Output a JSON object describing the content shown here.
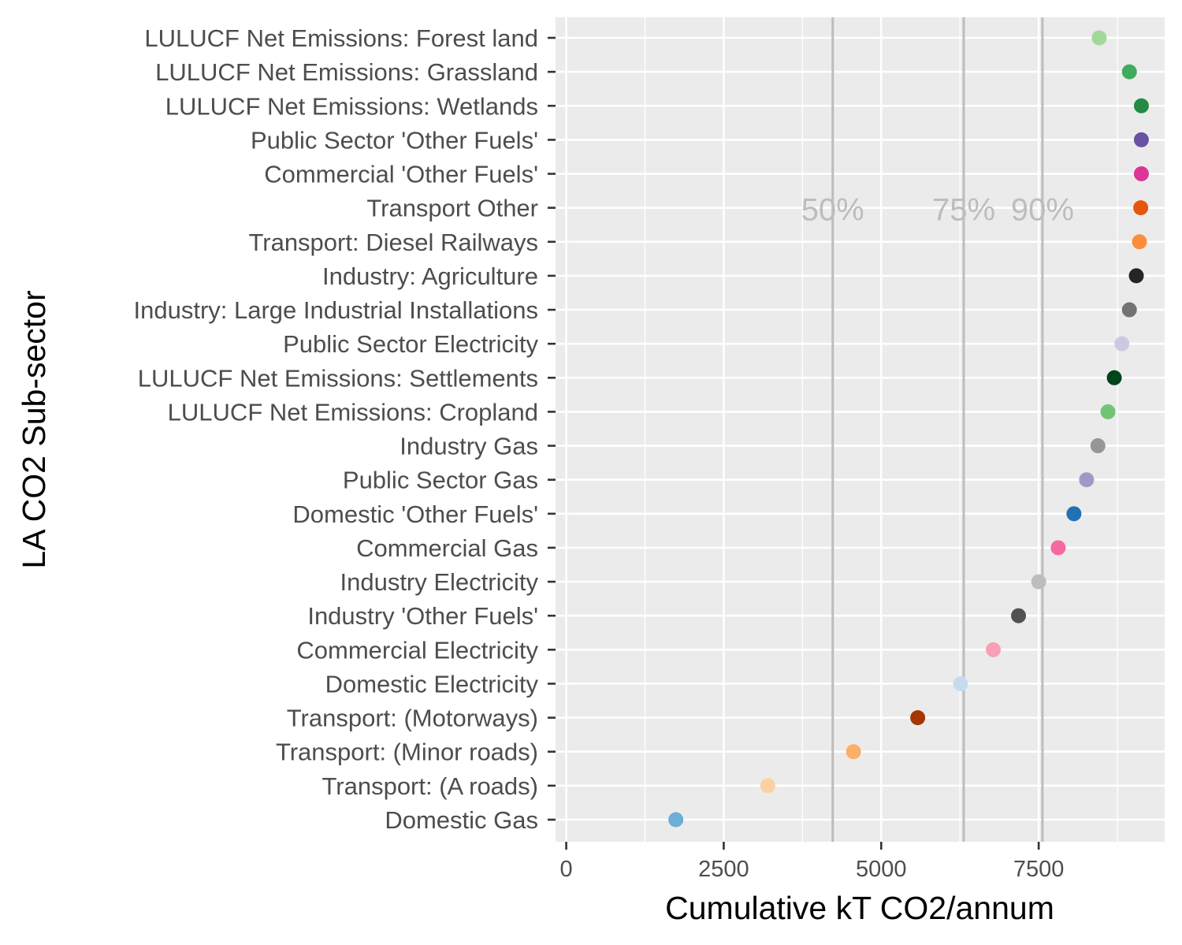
{
  "chart_data": {
    "type": "scatter",
    "xlabel": "Cumulative kT CO2/annum",
    "ylabel": "LA CO2 Sub-sector",
    "xlim": [
      -170,
      9500
    ],
    "x_ticks": [
      0,
      2500,
      5000,
      7500
    ],
    "x_tick_labels": [
      "0",
      "2500",
      "5000",
      "7500"
    ],
    "grid": true,
    "panel_background": "#ebebeb",
    "grid_color": "#ffffff",
    "reference_lines": [
      {
        "label": "50%",
        "x": 4230,
        "color": "#bdbdbd"
      },
      {
        "label": "75%",
        "x": 6310,
        "color": "#bdbdbd"
      },
      {
        "label": "90%",
        "x": 7560,
        "color": "#bdbdbd"
      }
    ],
    "points": [
      {
        "category": "LULUCF Net Emissions: Forest land",
        "x": 8460,
        "color": "#a1d99b"
      },
      {
        "category": "LULUCF Net Emissions: Grassland",
        "x": 8940,
        "color": "#41ab5d"
      },
      {
        "category": "LULUCF Net Emissions: Wetlands",
        "x": 9130,
        "color": "#238b45"
      },
      {
        "category": "Public Sector 'Other Fuels'",
        "x": 9130,
        "color": "#6a51a3"
      },
      {
        "category": "Commercial 'Other Fuels'",
        "x": 9130,
        "color": "#dd3497"
      },
      {
        "category": "Transport Other",
        "x": 9120,
        "color": "#e6550d"
      },
      {
        "category": "Transport: Diesel Railways",
        "x": 9100,
        "color": "#fd8d3c"
      },
      {
        "category": "Industry: Agriculture",
        "x": 9050,
        "color": "#252525"
      },
      {
        "category": "Industry: Large Industrial Installations",
        "x": 8940,
        "color": "#737373"
      },
      {
        "category": "Public Sector Electricity",
        "x": 8820,
        "color": "#cbc9e2"
      },
      {
        "category": "LULUCF Net Emissions: Settlements",
        "x": 8700,
        "color": "#00441b"
      },
      {
        "category": "LULUCF Net Emissions: Cropland",
        "x": 8600,
        "color": "#74c476"
      },
      {
        "category": "Industry Gas",
        "x": 8440,
        "color": "#969696"
      },
      {
        "category": "Public Sector Gas",
        "x": 8260,
        "color": "#9e9ac8"
      },
      {
        "category": "Domestic 'Other Fuels'",
        "x": 8060,
        "color": "#2171b5"
      },
      {
        "category": "Commercial Gas",
        "x": 7810,
        "color": "#f768a1"
      },
      {
        "category": "Industry Electricity",
        "x": 7500,
        "color": "#bdbdbd"
      },
      {
        "category": "Industry 'Other Fuels'",
        "x": 7180,
        "color": "#525252"
      },
      {
        "category": "Commercial Electricity",
        "x": 6780,
        "color": "#fa9fb5"
      },
      {
        "category": "Domestic Electricity",
        "x": 6260,
        "color": "#c6dbef"
      },
      {
        "category": "Transport: (Motorways)",
        "x": 5580,
        "color": "#a63603"
      },
      {
        "category": "Transport: (Minor roads)",
        "x": 4560,
        "color": "#fdae6b"
      },
      {
        "category": "Transport: (A roads)",
        "x": 3200,
        "color": "#fdd0a2"
      },
      {
        "category": "Domestic Gas",
        "x": 1740,
        "color": "#6baed6"
      }
    ]
  }
}
